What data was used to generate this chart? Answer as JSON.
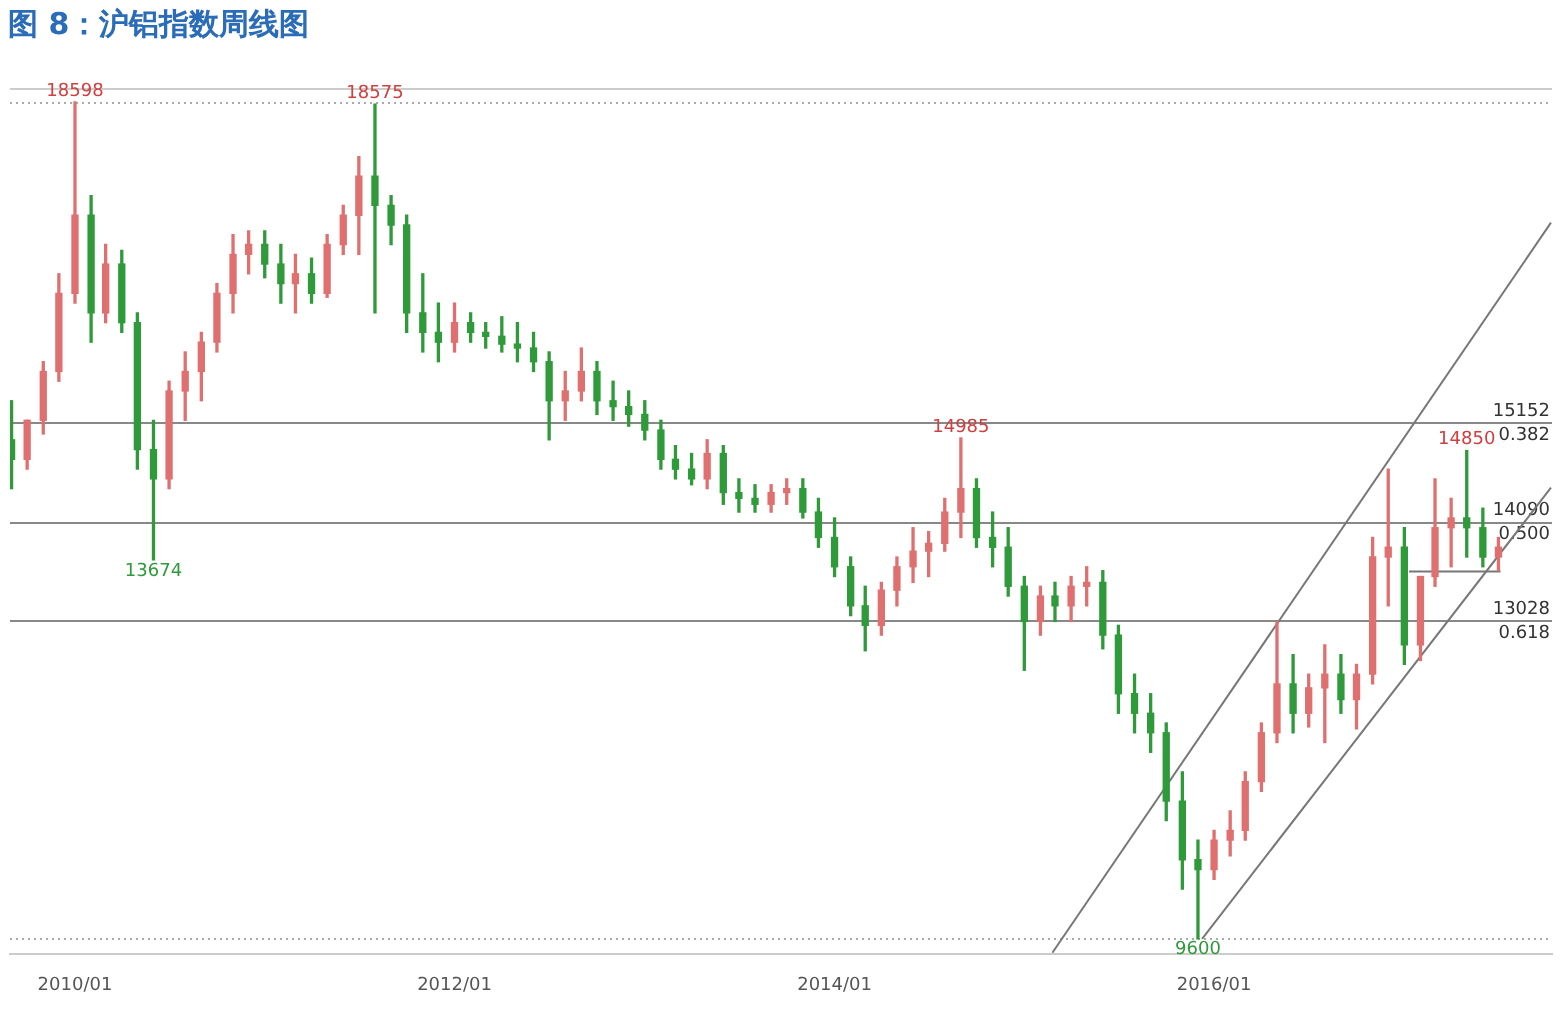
{
  "chart_data": {
    "type": "candlestick",
    "title": "图 8：沪铝指数周线图",
    "x": [
      "2009-09",
      "2009-10",
      "2009-11",
      "2009-12",
      "2010-01",
      "2010-02",
      "2010-03",
      "2010-04",
      "2010-05",
      "2010-06",
      "2010-07",
      "2010-08",
      "2010-09",
      "2010-10",
      "2010-11",
      "2010-12",
      "2011-01",
      "2011-02",
      "2011-03",
      "2011-04",
      "2011-05",
      "2011-06",
      "2011-07",
      "2011-08",
      "2011-09",
      "2011-10",
      "2011-11",
      "2011-12",
      "2012-01",
      "2012-02",
      "2012-03",
      "2012-04",
      "2012-05",
      "2012-06",
      "2012-07",
      "2012-08",
      "2012-09",
      "2012-10",
      "2012-11",
      "2012-12",
      "2013-01",
      "2013-02",
      "2013-03",
      "2013-04",
      "2013-05",
      "2013-06",
      "2013-07",
      "2013-08",
      "2013-09",
      "2013-10",
      "2013-11",
      "2013-12",
      "2014-01",
      "2014-02",
      "2014-03",
      "2014-04",
      "2014-05",
      "2014-06",
      "2014-07",
      "2014-08",
      "2014-09",
      "2014-10",
      "2014-11",
      "2014-12",
      "2015-01",
      "2015-02",
      "2015-03",
      "2015-04",
      "2015-05",
      "2015-06",
      "2015-07",
      "2015-08",
      "2015-09",
      "2015-10",
      "2015-11",
      "2015-12",
      "2016-01",
      "2016-02",
      "2016-03",
      "2016-04",
      "2016-05",
      "2016-06",
      "2016-07",
      "2016-08",
      "2016-09",
      "2016-10",
      "2016-11",
      "2016-12",
      "2017-01",
      "2017-02",
      "2017-03",
      "2017-04",
      "2017-05",
      "2017-06",
      "2017-07"
    ],
    "series": [
      {
        "ohlc": [
          [
            14965,
            15385,
            14440,
            14755
          ],
          [
            14755,
            15175,
            14650,
            15175
          ],
          [
            15175,
            15805,
            15028,
            15700
          ],
          [
            15700,
            16750,
            15595,
            16540
          ],
          [
            16540,
            18598,
            16435,
            17380
          ],
          [
            17380,
            17590,
            16015,
            16330
          ],
          [
            16330,
            17065,
            16225,
            16855
          ],
          [
            16855,
            17002,
            16120,
            16225
          ],
          [
            16225,
            16330,
            14650,
            14860
          ],
          [
            14860,
            15175,
            13674,
            14545
          ],
          [
            14545,
            15595,
            14440,
            15490
          ],
          [
            15490,
            15910,
            15175,
            15700
          ],
          [
            15700,
            16120,
            15385,
            16015
          ],
          [
            16015,
            16645,
            15910,
            16540
          ],
          [
            16540,
            17170,
            16330,
            16960
          ],
          [
            16960,
            17212,
            16750,
            17065
          ],
          [
            17065,
            17212,
            16708,
            16855
          ],
          [
            16855,
            17065,
            16435,
            16645
          ],
          [
            16645,
            16960,
            16330,
            16750
          ],
          [
            16750,
            16918,
            16435,
            16540
          ],
          [
            16540,
            17170,
            16498,
            17065
          ],
          [
            17065,
            17485,
            16960,
            17380
          ],
          [
            17380,
            18010,
            16960,
            17800
          ],
          [
            17800,
            18575,
            16330,
            17485
          ],
          [
            17485,
            17590,
            17065,
            17275
          ],
          [
            17275,
            17380,
            16120,
            16330
          ],
          [
            16330,
            16750,
            15910,
            16120
          ],
          [
            16120,
            16435,
            15805,
            16015
          ],
          [
            16015,
            16435,
            15910,
            16225
          ],
          [
            16225,
            16330,
            16015,
            16120
          ],
          [
            16120,
            16225,
            15952,
            16078
          ],
          [
            16078,
            16288,
            15910,
            15994
          ],
          [
            15994,
            16225,
            15805,
            15952
          ],
          [
            15952,
            16120,
            15700,
            15805
          ],
          [
            15805,
            15910,
            14965,
            15385
          ],
          [
            15385,
            15700,
            15175,
            15490
          ],
          [
            15490,
            15952,
            15385,
            15700
          ],
          [
            15700,
            15805,
            15238,
            15385
          ],
          [
            15385,
            15595,
            15175,
            15322
          ],
          [
            15322,
            15490,
            15112,
            15238
          ],
          [
            15238,
            15385,
            14965,
            15070
          ],
          [
            15070,
            15175,
            14650,
            14755
          ],
          [
            14755,
            14902,
            14545,
            14650
          ],
          [
            14650,
            14818,
            14482,
            14545
          ],
          [
            14545,
            14965,
            14440,
            14818
          ],
          [
            14818,
            14902,
            14272,
            14398
          ],
          [
            14398,
            14545,
            14188,
            14335
          ],
          [
            14335,
            14482,
            14188,
            14272
          ],
          [
            14272,
            14482,
            14188,
            14398
          ],
          [
            14398,
            14545,
            14272,
            14440
          ],
          [
            14440,
            14545,
            14125,
            14188
          ],
          [
            14188,
            14335,
            13810,
            13915
          ],
          [
            13915,
            14125,
            13495,
            13600
          ],
          [
            13600,
            13705,
            13075,
            13180
          ],
          [
            13180,
            13390,
            12697,
            12970
          ],
          [
            12970,
            13432,
            12865,
            13348
          ],
          [
            13348,
            13705,
            13180,
            13600
          ],
          [
            13600,
            14020,
            13432,
            13768
          ],
          [
            13768,
            13978,
            13495,
            13852
          ],
          [
            13852,
            14335,
            13768,
            14188
          ],
          [
            14188,
            14985,
            13915,
            14440
          ],
          [
            14440,
            14545,
            13810,
            13915
          ],
          [
            13915,
            14188,
            13600,
            13810
          ],
          [
            13810,
            14020,
            13285,
            13390
          ],
          [
            13390,
            13495,
            12487,
            13012
          ],
          [
            13012,
            13390,
            12865,
            13285
          ],
          [
            13285,
            13432,
            13012,
            13180
          ],
          [
            13180,
            13495,
            13012,
            13390
          ],
          [
            13390,
            13600,
            13180,
            13432
          ],
          [
            13432,
            13558,
            12718,
            12865
          ],
          [
            12865,
            12970,
            12025,
            12235
          ],
          [
            12235,
            12445,
            11815,
            12025
          ],
          [
            12025,
            12235,
            11605,
            11815
          ],
          [
            11815,
            11920,
            10870,
            11080
          ],
          [
            11080,
            11395,
            10135,
            10450
          ],
          [
            10450,
            10660,
            9600,
            10345
          ],
          [
            10345,
            10765,
            10240,
            10660
          ],
          [
            10660,
            10975,
            10492,
            10765
          ],
          [
            10765,
            11395,
            10660,
            11290
          ],
          [
            11290,
            11920,
            11185,
            11815
          ],
          [
            11815,
            13012,
            11710,
            12340
          ],
          [
            12340,
            12655,
            11815,
            12025
          ],
          [
            12025,
            12445,
            11878,
            12298
          ],
          [
            12298,
            12760,
            11710,
            12445
          ],
          [
            12445,
            12655,
            12025,
            12172
          ],
          [
            12172,
            12550,
            11857,
            12445
          ],
          [
            12445,
            13915,
            12340,
            13705
          ],
          [
            13705,
            14650,
            13180,
            13810
          ],
          [
            13810,
            14020,
            12550,
            12760
          ],
          [
            12760,
            13495,
            12592,
            13495
          ],
          [
            13495,
            14545,
            13390,
            14020
          ],
          [
            14020,
            14335,
            13600,
            14125
          ],
          [
            14125,
            14850,
            13705,
            14020
          ],
          [
            14020,
            14230,
            13600,
            13705
          ],
          [
            13705,
            13915,
            13558,
            13810
          ]
        ]
      },
      {
        "type": "line",
        "color": "#777777",
        "x": [
          "2015-02-24",
          "2017-10-10"
        ],
        "values": [
          9450,
          17300
        ]
      },
      {
        "type": "line",
        "color": "#777777",
        "x": [
          "2015-12-09",
          "2017-10-10"
        ],
        "values": [
          9600,
          14450
        ]
      },
      {
        "type": "line",
        "color": "#777777",
        "x": [
          "2017-01-10",
          "2017-07-05"
        ],
        "values": [
          13550,
          13550
        ]
      }
    ],
    "xlim": [
      "2009-08-29",
      "2017-10-12"
    ],
    "xticks": [
      {
        "value": "2010-01",
        "label": "2010/01"
      },
      {
        "value": "2012-01",
        "label": "2012/01"
      },
      {
        "value": "2014-01",
        "label": "2014/01"
      },
      {
        "value": "2016-01",
        "label": "2016/01"
      }
    ],
    "ylim": [
      9432,
      18748
    ],
    "tick_labels": "x",
    "ref_lines": [
      {
        "axis": "y",
        "value": 18598,
        "color": "#aaaaaa",
        "line_style": "dotted"
      },
      {
        "axis": "y",
        "value": 15152,
        "label": "15152 0.382",
        "color": "#888888"
      },
      {
        "axis": "y",
        "value": 14090,
        "label": "14090 0.500",
        "color": "#888888"
      },
      {
        "axis": "y",
        "value": 13028,
        "label": "13028 0.618",
        "color": "#888888"
      },
      {
        "axis": "y",
        "value": 9600,
        "color": "#aaaaaa",
        "line_style": "dotted"
      }
    ],
    "annotations": [
      {
        "text": "18598",
        "x": "2010-01",
        "y": 18598
      },
      {
        "text": "13674",
        "x": "2010-06",
        "y": 13674
      },
      {
        "text": "18575",
        "x": "2011-08",
        "y": 18575
      },
      {
        "text": "14985",
        "x": "2014-09",
        "y": 14985
      },
      {
        "text": "9600",
        "x": "2015-12",
        "y": 9600
      },
      {
        "text": "14850",
        "x": "2017-05",
        "y": 14850
      }
    ],
    "legend": false
  }
}
